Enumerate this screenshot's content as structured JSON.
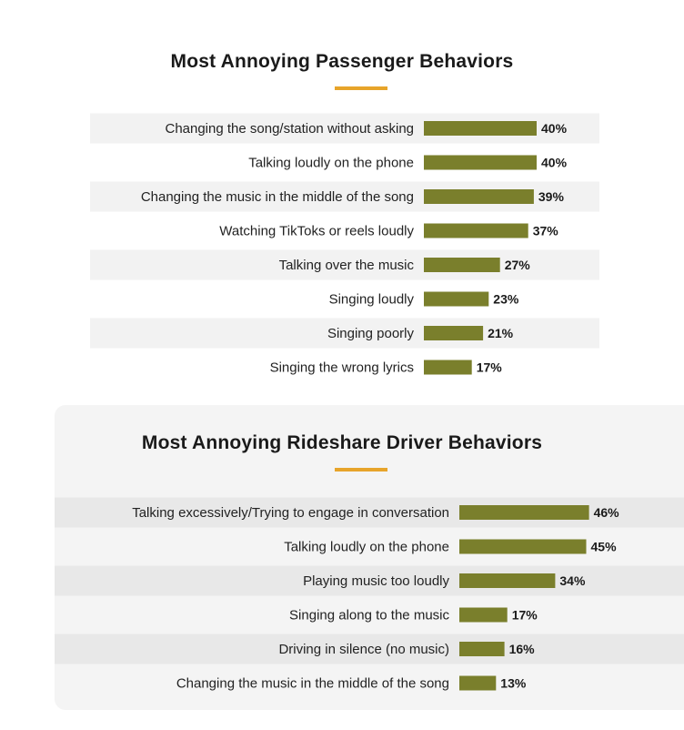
{
  "colors": {
    "bar": "#7a7f2c",
    "accent": "#e7a42a",
    "stripe_on_white": "#f2f2f2",
    "stripe_on_gray": "#e8e8e8"
  },
  "chart_data": [
    {
      "type": "bar",
      "orientation": "horizontal",
      "title": "Most Annoying Passenger Behaviors",
      "categories": [
        "Changing the song/station without asking",
        "Talking loudly on the phone",
        "Changing the music in the middle of the song",
        "Watching TikToks or reels loudly",
        "Talking over the music",
        "Singing loudly",
        "Singing poorly",
        "Singing the wrong lyrics"
      ],
      "values": [
        40,
        40,
        39,
        37,
        27,
        23,
        21,
        17
      ],
      "value_labels": [
        "40%",
        "40%",
        "39%",
        "37%",
        "27%",
        "23%",
        "21%",
        "17%"
      ],
      "unit": "%",
      "grid": false
    },
    {
      "type": "bar",
      "orientation": "horizontal",
      "title": "Most Annoying Rideshare Driver Behaviors",
      "categories": [
        "Talking excessively/Trying to engage in conversation",
        "Talking loudly on the phone",
        "Playing music too loudly",
        "Singing along to the music",
        "Driving in silence (no music)",
        "Changing the music in the middle of the song"
      ],
      "values": [
        46,
        45,
        34,
        17,
        16,
        13
      ],
      "value_labels": [
        "46%",
        "45%",
        "34%",
        "17%",
        "16%",
        "13%"
      ],
      "unit": "%",
      "grid": false
    }
  ]
}
